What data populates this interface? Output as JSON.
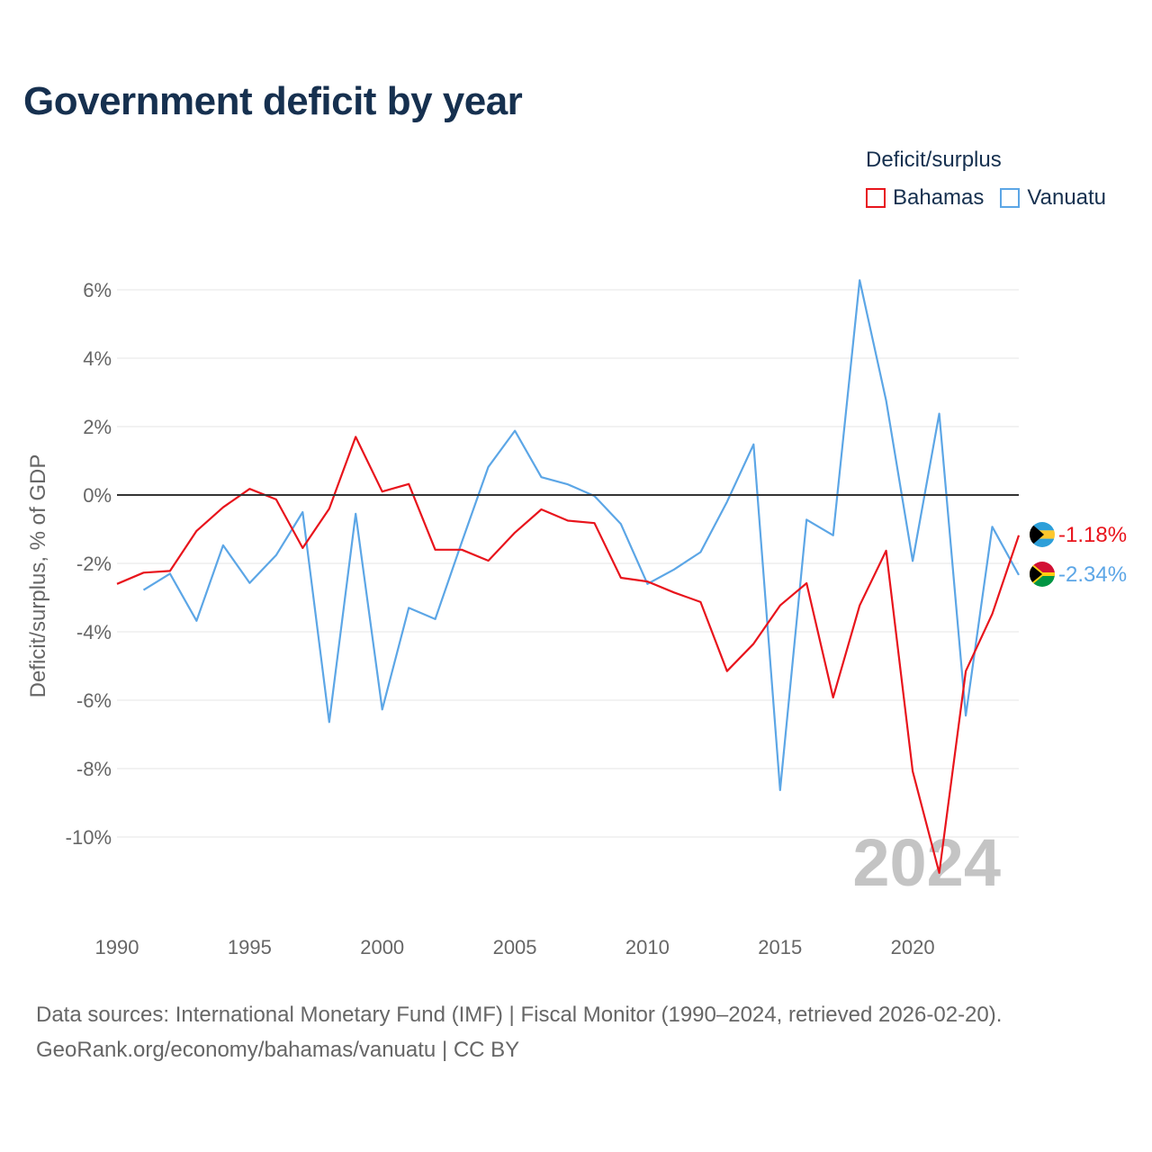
{
  "title": "Government deficit by year",
  "legend": {
    "title": "Deficit/surplus",
    "items": [
      {
        "label": "Bahamas",
        "color": "#e8141c"
      },
      {
        "label": "Vanuatu",
        "color": "#5ca6e6"
      }
    ]
  },
  "footer": {
    "line1": "Data sources: International Monetary Fund (IMF) | Fiscal Monitor (1990–2024, retrieved 2026-02-20).",
    "line2": "GeoRank.org/economy/bahamas/vanuatu | CC BY"
  },
  "chart_data": {
    "type": "line",
    "title": "Government deficit by year",
    "xlabel": "",
    "ylabel": "Deficit/surplus, % of GDP",
    "xlim": [
      1990,
      2024
    ],
    "ylim": [
      -12,
      7
    ],
    "x_ticks": [
      1990,
      1995,
      2000,
      2005,
      2010,
      2015,
      2020
    ],
    "y_ticks": [
      6,
      4,
      2,
      0,
      -2,
      -4,
      -6,
      -8,
      -10
    ],
    "y_tick_labels": [
      "6%",
      "4%",
      "2%",
      "0%",
      "-2%",
      "-4%",
      "-6%",
      "-8%",
      "-10%"
    ],
    "x_tick_labels": [
      "1990",
      "1995",
      "2000",
      "2005",
      "2010",
      "2015",
      "2020"
    ],
    "year_watermark": "2024",
    "series": [
      {
        "name": "Bahamas",
        "color": "#e8141c",
        "flag": "bahamas-flag",
        "end_label": "-1.18%",
        "x": [
          1990,
          1991,
          1992,
          1993,
          1994,
          1995,
          1996,
          1997,
          1998,
          1999,
          2000,
          2001,
          2002,
          2003,
          2004,
          2005,
          2006,
          2007,
          2008,
          2009,
          2010,
          2011,
          2012,
          2013,
          2014,
          2015,
          2016,
          2017,
          2018,
          2019,
          2020,
          2021,
          2022,
          2023,
          2024
        ],
        "values": [
          -2.6,
          -2.27,
          -2.22,
          -1.05,
          -0.36,
          0.18,
          -0.13,
          -1.55,
          -0.4,
          1.7,
          0.1,
          0.32,
          -1.6,
          -1.6,
          -1.92,
          -1.1,
          -0.42,
          -0.75,
          -0.82,
          -2.42,
          -2.53,
          -2.85,
          -3.13,
          -5.15,
          -4.35,
          -3.23,
          -2.58,
          -5.92,
          -3.23,
          -1.63,
          -8.08,
          -11.05,
          -5.15,
          -3.48,
          -1.18
        ]
      },
      {
        "name": "Vanuatu",
        "color": "#5ca6e6",
        "flag": "vanuatu-flag",
        "end_label": "-2.34%",
        "x": [
          1991,
          1992,
          1993,
          1994,
          1995,
          1996,
          1997,
          1998,
          1999,
          2000,
          2001,
          2002,
          2003,
          2004,
          2005,
          2006,
          2007,
          2008,
          2009,
          2010,
          2011,
          2012,
          2013,
          2014,
          2015,
          2016,
          2017,
          2018,
          2019,
          2020,
          2021,
          2022,
          2023,
          2024
        ],
        "values": [
          -2.78,
          -2.3,
          -3.68,
          -1.47,
          -2.57,
          -1.76,
          -0.5,
          -6.64,
          -0.55,
          -6.27,
          -3.3,
          -3.63,
          -1.38,
          0.82,
          1.88,
          0.52,
          0.31,
          -0.03,
          -0.85,
          -2.6,
          -2.18,
          -1.67,
          -0.2,
          1.48,
          -8.63,
          -0.72,
          -1.18,
          6.28,
          2.76,
          -1.93,
          2.38,
          -6.45,
          -0.93,
          -2.34
        ]
      }
    ]
  }
}
